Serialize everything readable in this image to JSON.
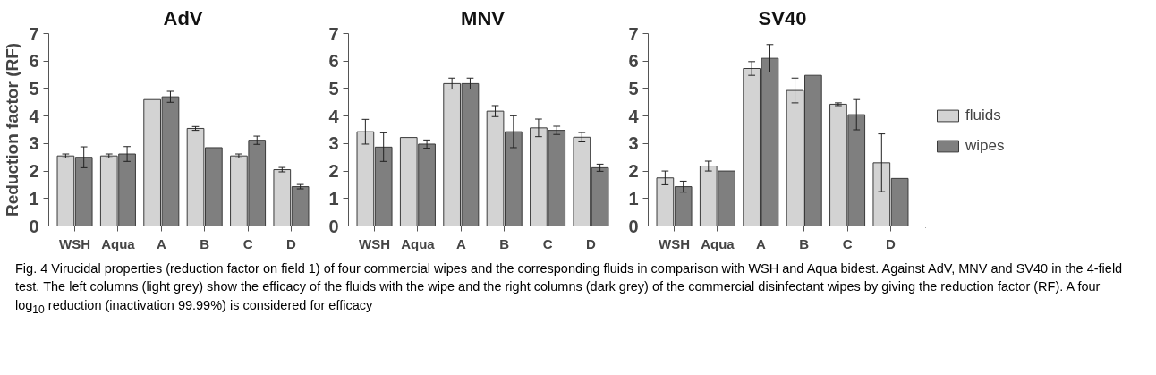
{
  "chart_data": [
    {
      "type": "bar",
      "title": "AdV",
      "ylabel": "Reduction factor (RF)",
      "categories": [
        "WSH",
        "Aqua",
        "A",
        "B",
        "C",
        "D"
      ],
      "ylim": [
        0,
        7
      ],
      "yticks": [
        0,
        1,
        2,
        3,
        4,
        5,
        6,
        7
      ],
      "grid": false,
      "legend": false,
      "series": [
        {
          "color": "#d3d3d3",
          "values": [
            2.55,
            2.55,
            4.6,
            3.55,
            2.55,
            2.05
          ],
          "errors": [
            0.07,
            0.07,
            null,
            0.07,
            0.07,
            0.08
          ]
        },
        {
          "color": "#7f7f7f",
          "values": [
            2.5,
            2.62,
            4.7,
            2.85,
            3.12,
            1.43
          ],
          "errors": [
            0.38,
            0.27,
            0.2,
            null,
            0.15,
            0.08
          ]
        }
      ]
    },
    {
      "type": "bar",
      "title": "MNV",
      "categories": [
        "WSH",
        "Aqua",
        "A",
        "B",
        "C",
        "D"
      ],
      "ylim": [
        0,
        7
      ],
      "yticks": [
        0,
        1,
        2,
        3,
        4,
        5,
        6,
        7
      ],
      "grid": false,
      "legend": false,
      "series": [
        {
          "color": "#d3d3d3",
          "values": [
            3.43,
            3.22,
            5.18,
            4.18,
            3.57,
            3.23
          ],
          "errors": [
            0.45,
            null,
            0.2,
            0.2,
            0.32,
            0.17
          ]
        },
        {
          "color": "#7f7f7f",
          "values": [
            2.87,
            2.98,
            5.18,
            3.43,
            3.48,
            2.12
          ],
          "errors": [
            0.52,
            0.15,
            0.2,
            0.58,
            0.15,
            0.13
          ]
        }
      ]
    },
    {
      "type": "bar",
      "title": "SV40",
      "categories": [
        "WSH",
        "Aqua",
        "A",
        "B",
        "C",
        "D"
      ],
      "ylim": [
        0,
        7
      ],
      "yticks": [
        0,
        1,
        2,
        3,
        4,
        5,
        6,
        7
      ],
      "grid": false,
      "legend": "right",
      "series": [
        {
          "name": "fluids",
          "color": "#d3d3d3",
          "values": [
            1.75,
            2.18,
            5.73,
            4.93,
            4.43,
            2.3
          ],
          "errors": [
            0.25,
            0.18,
            0.25,
            0.45,
            0.05,
            1.05
          ]
        },
        {
          "name": "wipes",
          "color": "#7f7f7f",
          "values": [
            1.43,
            2.0,
            6.1,
            5.48,
            4.05,
            1.73
          ],
          "errors": [
            0.2,
            null,
            0.5,
            null,
            0.55,
            null
          ]
        }
      ],
      "annotations": [
        "Fig. 4 Virucidal properties (reduction factor on field 1) of four commercial wipes and the corresponding fluids in comparison with WSH and Aqua bidest. Against AdV, MNV and SV40 in the 4-field test. The left columns (light grey) show the efficacy of the fluids with the wipe and the right columns (dark grey) of the commercial disinfectant wipes by giving the reduction factor (RF). A four log$_{10}$ reduction (inactivation 99.99%) is considered for efficacy"
      ]
    }
  ]
}
